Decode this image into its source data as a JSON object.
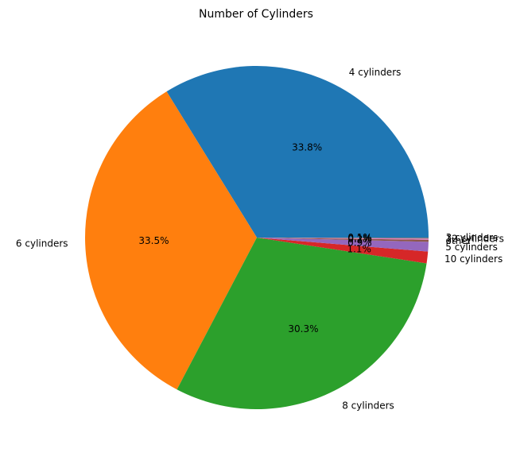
{
  "chart_data": {
    "type": "pie",
    "title": "Number of Cylinders",
    "start_angle_deg": 0,
    "direction": "counterclockwise",
    "slices": [
      {
        "label": "4 cylinders",
        "pct_label": "33.8%",
        "value": 33.8,
        "color": "#1f77b4"
      },
      {
        "label": "6 cylinders",
        "pct_label": "33.5%",
        "value": 33.5,
        "color": "#ff7f0e"
      },
      {
        "label": "8 cylinders",
        "pct_label": "30.3%",
        "value": 30.3,
        "color": "#2ca02c"
      },
      {
        "label": "10 cylinders",
        "pct_label": "1.1%",
        "value": 1.1,
        "color": "#d62728"
      },
      {
        "label": "5 cylinders",
        "pct_label": "0.9%",
        "value": 0.9,
        "color": "#9467bd"
      },
      {
        "label": "other",
        "pct_label": "0.2%",
        "value": 0.2,
        "color": "#8c564b"
      },
      {
        "label": "12 cylinders",
        "pct_label": "0.1%",
        "value": 0.1,
        "color": "#e377c2"
      },
      {
        "label": "3 cylinders",
        "pct_label": "0.1%",
        "value": 0.1,
        "color": "#7f7f7f"
      }
    ]
  }
}
